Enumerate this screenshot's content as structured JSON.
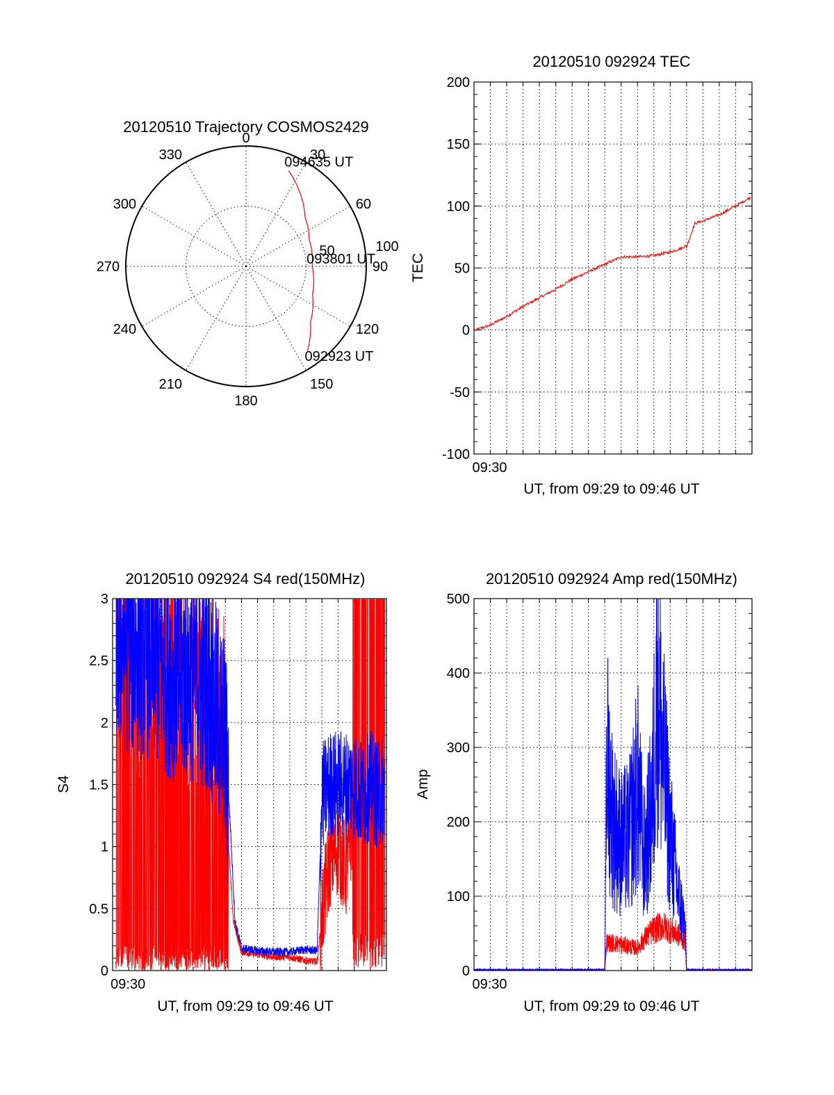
{
  "chart_data": [
    {
      "type": "polar",
      "title": "20120510 Trajectory COSMOS2429",
      "azimuth_labels": [
        "0",
        "30",
        "60",
        "90",
        "120",
        "150",
        "180",
        "210",
        "240",
        "270",
        "300",
        "330"
      ],
      "azimuth_values": [
        0,
        30,
        60,
        90,
        120,
        150,
        180,
        210,
        240,
        270,
        300,
        330
      ],
      "radial_labels": [
        "50",
        "100"
      ],
      "radial_values": [
        50,
        100
      ],
      "rlim": [
        0,
        100
      ],
      "grid": true,
      "series": [
        {
          "color": "#ff0000",
          "points": [
            {
              "az": 24,
              "r": 87
            },
            {
              "az": 36,
              "r": 76
            },
            {
              "az": 50,
              "r": 64
            },
            {
              "az": 67,
              "r": 57
            },
            {
              "az": 90,
              "r": 55
            },
            {
              "az": 113,
              "r": 60
            },
            {
              "az": 131,
              "r": 71
            },
            {
              "az": 144,
              "r": 87
            }
          ]
        }
      ],
      "annotations": [
        {
          "text": "094635 UT",
          "az": 24,
          "r": 87
        },
        {
          "text": "093801 UT",
          "az": 90,
          "r": 55
        },
        {
          "text": "092923 UT",
          "az": 144,
          "r": 87
        }
      ]
    },
    {
      "type": "line",
      "title": "20120510 092924 TEC",
      "ylabel": "TEC",
      "xlabel": "UT, from 09:29 to 09:46 UT",
      "xtick_labels": [
        "09:30"
      ],
      "xtick_values": [
        1
      ],
      "xlim": [
        0,
        17
      ],
      "ylim": [
        -100,
        200
      ],
      "yticks": [
        "-100",
        "-50",
        "0",
        "50",
        "100",
        "150",
        "200"
      ],
      "ytick_values": [
        -100,
        -50,
        0,
        50,
        100,
        150,
        200
      ],
      "grid": true,
      "series": [
        {
          "color": "#ff0000",
          "x": [
            0.1,
            1.0,
            2.0,
            3.0,
            4.0,
            5.0,
            6.0,
            7.0,
            8.0,
            9.0,
            10.0,
            11.0,
            12.0,
            12.7,
            12.9,
            13.0,
            13.5,
            14.0,
            15.0,
            16.0,
            16.9
          ],
          "y": [
            0,
            4,
            11,
            19,
            26,
            33,
            41,
            47,
            53,
            59,
            59,
            60,
            63,
            66,
            68,
            67,
            86,
            88,
            93,
            100,
            107
          ]
        }
      ]
    },
    {
      "type": "line",
      "title": "20120510 092924 S4 red(150MHz)",
      "ylabel": "S4",
      "xlabel": "UT, from 09:29 to 09:46 UT",
      "xtick_labels": [
        "09:30"
      ],
      "xtick_values": [
        1
      ],
      "xlim": [
        0,
        17
      ],
      "ylim": [
        0,
        3
      ],
      "yticks": [
        "0",
        "0.5",
        "1",
        "1.5",
        "2",
        "2.5",
        "3"
      ],
      "ytick_values": [
        0,
        0.5,
        1,
        1.5,
        2,
        2.5,
        3
      ],
      "grid": true,
      "series": [
        {
          "color": "#ff0000",
          "x": [
            0.2,
            1,
            2,
            3,
            4,
            5,
            6,
            7,
            7.2,
            7.5,
            8,
            9,
            10,
            11,
            12,
            12.7,
            13,
            13.5,
            14,
            14.5,
            15,
            15.3,
            16,
            16.9
          ],
          "y": [
            2.1,
            2.0,
            1.9,
            2.1,
            1.9,
            1.8,
            1.6,
            1.3,
            1.0,
            0.4,
            0.15,
            0.13,
            0.11,
            0.11,
            0.08,
            0.07,
            0.45,
            0.9,
            1.0,
            0.8,
            1.3,
            3.0,
            3.0,
            3.0
          ]
        },
        {
          "color": "#0000ff",
          "x": [
            0.2,
            1,
            2,
            3,
            4,
            5,
            6,
            7,
            7.3,
            7.6,
            8,
            9,
            10,
            11,
            12,
            12.7,
            13,
            13.5,
            14,
            14.5,
            15,
            15.5,
            16,
            16.5,
            16.9
          ],
          "y": [
            2.7,
            2.6,
            2.6,
            2.5,
            2.4,
            2.4,
            2.3,
            1.8,
            1.2,
            0.4,
            0.18,
            0.16,
            0.15,
            0.15,
            0.17,
            0.16,
            1.4,
            1.5,
            1.5,
            1.5,
            1.5,
            1.4,
            1.5,
            1.4,
            1.5
          ]
        }
      ]
    },
    {
      "type": "line",
      "title": "20120510 092924 Amp red(150MHz)",
      "ylabel": "Amp",
      "xlabel": "UT, from 09:29 to 09:46 UT",
      "xtick_labels": [
        "09:30"
      ],
      "xtick_values": [
        1
      ],
      "xlim": [
        0,
        17
      ],
      "ylim": [
        0,
        500
      ],
      "yticks": [
        "0",
        "100",
        "200",
        "300",
        "400",
        "500"
      ],
      "ytick_values": [
        0,
        100,
        200,
        300,
        400,
        500
      ],
      "grid": true,
      "series": [
        {
          "color": "#ff0000",
          "x": [
            0,
            8.0,
            8.1,
            9,
            10,
            10.5,
            11,
            11.5,
            12,
            12.5,
            12.9,
            13.0,
            17
          ],
          "y": [
            0,
            0,
            38,
            35,
            30,
            45,
            55,
            60,
            55,
            48,
            40,
            0,
            0
          ]
        },
        {
          "color": "#0000ff",
          "x": [
            0,
            8.0,
            8.1,
            8.5,
            9,
            9.5,
            10,
            10.4,
            10.9,
            11.2,
            11.5,
            12,
            12.5,
            12.9,
            13.0,
            17
          ],
          "y": [
            0,
            0,
            290,
            200,
            170,
            180,
            250,
            150,
            220,
            410,
            300,
            180,
            100,
            60,
            0,
            0
          ]
        }
      ]
    }
  ]
}
